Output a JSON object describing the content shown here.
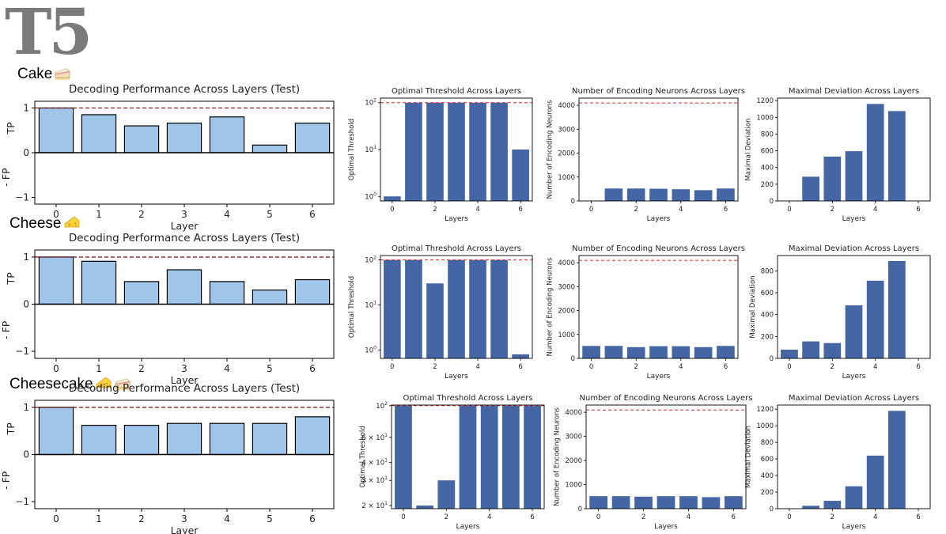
{
  "model_name": "T5",
  "rows": [
    {
      "label": "Cake",
      "emoji_icons": [
        "cake-icon"
      ],
      "charts": {
        "decoding": {
          "type": "bar",
          "title": "Decoding Performance Across Layers (Test)",
          "xlabel": "Layer",
          "ylabel_top": "TP",
          "ylabel_bottom": "- FP",
          "categories": [
            "0",
            "1",
            "2",
            "3",
            "4",
            "5",
            "6"
          ],
          "values": [
            1.0,
            0.85,
            0.6,
            0.66,
            0.8,
            0.17,
            0.66
          ],
          "ylim": [
            -1.15,
            1.15
          ],
          "yticks": [
            -1,
            0,
            1
          ],
          "reference_line": 1,
          "color": "#9fc5e8"
        },
        "threshold": {
          "type": "bar",
          "title": "Optimal Threshold Across Layers",
          "xlabel": "Layers",
          "ylabel": "Optimal Threshold",
          "categories": [
            "0",
            "1",
            "2",
            "3",
            "4",
            "5",
            "6"
          ],
          "values": [
            1,
            100,
            100,
            100,
            100,
            100,
            10
          ],
          "scale": "log",
          "ylim": [
            0.8,
            125
          ],
          "yticks": [
            1,
            10,
            100
          ],
          "ytick_labels": [
            "10^0",
            "10^1",
            "10^2"
          ],
          "xticks": [
            0,
            2,
            4,
            6
          ],
          "reference_line": 100,
          "color": "#4566a5"
        },
        "neurons": {
          "type": "bar",
          "title": "Number of Encoding Neurons Across Layers",
          "xlabel": "Layers",
          "ylabel": "Number of Encoding Neurons",
          "categories": [
            "0",
            "1",
            "2",
            "3",
            "4",
            "5",
            "6"
          ],
          "values": [
            0,
            520,
            520,
            510,
            490,
            450,
            520
          ],
          "ylim": [
            0,
            4300
          ],
          "yticks": [
            0,
            1000,
            2000,
            3000,
            4000
          ],
          "xticks": [
            0,
            2,
            4,
            6
          ],
          "reference_line": 4096,
          "color": "#4566a5"
        },
        "deviation": {
          "type": "bar",
          "title": "Maximal Deviation Across Layers",
          "xlabel": "Layers",
          "ylabel": "Maximal Deviation",
          "categories": [
            "0",
            "1",
            "2",
            "3",
            "4",
            "5",
            "6"
          ],
          "values": [
            0,
            290,
            530,
            595,
            1160,
            1075,
            0
          ],
          "ylim": [
            0,
            1230
          ],
          "yticks": [
            0,
            200,
            400,
            600,
            800,
            1000,
            1200
          ],
          "xticks": [
            0,
            2,
            4,
            6
          ],
          "color": "#4566a5"
        }
      }
    },
    {
      "label": "Cheese",
      "emoji_icons": [
        "cheese-icon"
      ],
      "charts": {
        "decoding": {
          "type": "bar",
          "title": "Decoding Performance Across Layers (Test)",
          "xlabel": "Layer",
          "ylabel_top": "TP",
          "ylabel_bottom": "- FP",
          "categories": [
            "0",
            "1",
            "2",
            "3",
            "4",
            "5",
            "6"
          ],
          "values": [
            1.0,
            0.91,
            0.48,
            0.73,
            0.48,
            0.3,
            0.52
          ],
          "ylim": [
            -1.15,
            1.15
          ],
          "yticks": [
            -1,
            0,
            1
          ],
          "reference_line": 1,
          "color": "#9fc5e8"
        },
        "threshold": {
          "type": "bar",
          "title": "Optimal Threshold Across Layers",
          "xlabel": "Layers",
          "ylabel": "Optimal Threshold",
          "categories": [
            "0",
            "1",
            "2",
            "3",
            "4",
            "5",
            "6"
          ],
          "values": [
            100,
            100,
            30,
            100,
            100,
            100,
            0.8
          ],
          "scale": "log",
          "ylim": [
            0.65,
            125
          ],
          "yticks": [
            1,
            10,
            100
          ],
          "ytick_labels": [
            "10^0",
            "10^1",
            "10^2"
          ],
          "xticks": [
            0,
            2,
            4,
            6
          ],
          "reference_line": 100,
          "color": "#4566a5"
        },
        "neurons": {
          "type": "bar",
          "title": "Number of Encoding Neurons Across Layers",
          "xlabel": "Layers",
          "ylabel": "Number of Encoding Neurons",
          "categories": [
            "0",
            "1",
            "2",
            "3",
            "4",
            "5",
            "6"
          ],
          "values": [
            520,
            520,
            470,
            510,
            510,
            470,
            520
          ],
          "ylim": [
            0,
            4300
          ],
          "yticks": [
            0,
            1000,
            2000,
            3000,
            4000
          ],
          "xticks": [
            0,
            2,
            4,
            6
          ],
          "reference_line": 4096,
          "color": "#4566a5"
        },
        "deviation": {
          "type": "bar",
          "title": "Maximal Deviation Across Layers",
          "xlabel": "Layers",
          "ylabel": "Maximal Deviation",
          "categories": [
            "0",
            "1",
            "2",
            "3",
            "4",
            "5",
            "6"
          ],
          "values": [
            80,
            155,
            140,
            485,
            710,
            890,
            0
          ],
          "ylim": [
            0,
            940
          ],
          "yticks": [
            0,
            200,
            400,
            600,
            800
          ],
          "xticks": [
            0,
            2,
            4,
            6
          ],
          "color": "#4566a5"
        }
      }
    },
    {
      "label": "Cheesecake",
      "emoji_icons": [
        "cheese-icon",
        "cake-icon"
      ],
      "charts": {
        "decoding": {
          "type": "bar",
          "title": "Decoding Performance Across Layers (Test)",
          "xlabel": "Layer",
          "ylabel_top": "TP",
          "ylabel_bottom": "- FP",
          "categories": [
            "0",
            "1",
            "2",
            "3",
            "4",
            "5",
            "6"
          ],
          "values": [
            1.0,
            0.62,
            0.62,
            0.66,
            0.66,
            0.66,
            0.8
          ],
          "ylim": [
            -1.15,
            1.15
          ],
          "yticks": [
            -1,
            0,
            1
          ],
          "reference_line": 1,
          "color": "#9fc5e8"
        },
        "threshold": {
          "type": "bar",
          "title": "Optimal Threshold Across Layers",
          "xlabel": "Layers",
          "ylabel": "Optimal Threshold",
          "categories": [
            "0",
            "1",
            "2",
            "3",
            "4",
            "5",
            "6"
          ],
          "values": [
            100,
            20,
            30,
            100,
            100,
            100,
            100
          ],
          "scale": "log",
          "ylim": [
            19,
            101
          ],
          "yticks": [
            20,
            30,
            40,
            60,
            100
          ],
          "ytick_labels": [
            "2 × 10^1",
            "3 × 10^1",
            "4 × 10^1",
            "6 × 10^1",
            "10^2"
          ],
          "xticks": [
            0,
            2,
            4,
            6
          ],
          "reference_line": 100,
          "color": "#4566a5"
        },
        "neurons": {
          "type": "bar",
          "title": "Number of Encoding Neurons Across Layers",
          "xlabel": "Layers",
          "ylabel": "Number of Encoding Neurons",
          "categories": [
            "0",
            "1",
            "2",
            "3",
            "4",
            "5",
            "6"
          ],
          "values": [
            520,
            520,
            500,
            520,
            520,
            480,
            520
          ],
          "ylim": [
            0,
            4300
          ],
          "yticks": [
            0,
            1000,
            2000,
            3000,
            4000
          ],
          "xticks": [
            0,
            2,
            4,
            6
          ],
          "reference_line": 4096,
          "color": "#4566a5"
        },
        "deviation": {
          "type": "bar",
          "title": "Maximal Deviation Across Layers",
          "xlabel": "Layers",
          "ylabel": "Maximal Deviation",
          "categories": [
            "0",
            "1",
            "2",
            "3",
            "4",
            "5",
            "6"
          ],
          "values": [
            0,
            35,
            95,
            270,
            640,
            1180,
            0
          ],
          "ylim": [
            0,
            1250
          ],
          "yticks": [
            0,
            200,
            400,
            600,
            800,
            1000,
            1200
          ],
          "xticks": [
            0,
            2,
            4,
            6
          ],
          "color": "#4566a5"
        }
      }
    }
  ]
}
